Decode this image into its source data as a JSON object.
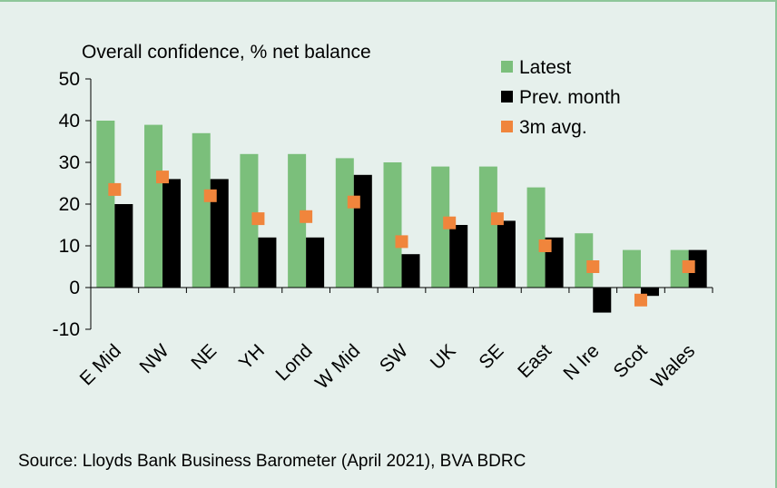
{
  "source": "Source: Lloyds Bank Business Barometer (April 2021), BVA BDRC",
  "chart_data": {
    "type": "bar",
    "title": "Overall confidence, % net balance",
    "xlabel": "",
    "ylabel": "",
    "ylim": [
      -10,
      50
    ],
    "yticks": [
      -10,
      0,
      10,
      20,
      30,
      40,
      50
    ],
    "grid": false,
    "legend_position": "top-right",
    "categories": [
      "E Mid",
      "NW",
      "NE",
      "YH",
      "Lond",
      "W Mid",
      "SW",
      "UK",
      "SE",
      "East",
      "N Ire",
      "Scot",
      "Wales"
    ],
    "series": [
      {
        "name": "Latest",
        "kind": "bar",
        "color": "#7bbf7b",
        "values": [
          40,
          39,
          37,
          32,
          32,
          31,
          30,
          29,
          29,
          24,
          13,
          9,
          9
        ]
      },
      {
        "name": "Prev. month",
        "kind": "bar",
        "color": "#000000",
        "values": [
          20,
          26,
          26,
          12,
          12,
          27,
          8,
          15,
          16,
          12,
          -6,
          -2,
          9
        ]
      },
      {
        "name": "3m avg.",
        "kind": "marker",
        "color": "#f0853c",
        "values": [
          23.5,
          26.5,
          22,
          16.5,
          17,
          20.5,
          11,
          15.5,
          16.5,
          10,
          5,
          -3,
          5
        ]
      }
    ]
  }
}
